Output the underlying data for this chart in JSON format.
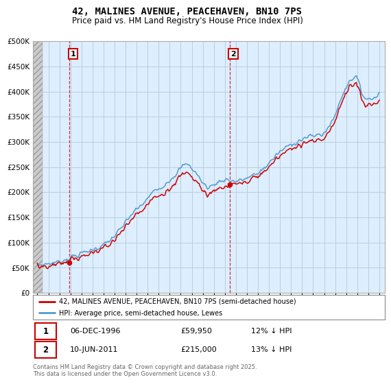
{
  "title1": "42, MALINES AVENUE, PEACEHAVEN, BN10 7PS",
  "title2": "Price paid vs. HM Land Registry's House Price Index (HPI)",
  "legend_line1": "42, MALINES AVENUE, PEACEHAVEN, BN10 7PS (semi-detached house)",
  "legend_line2": "HPI: Average price, semi-detached house, Lewes",
  "annotation1_date": "06-DEC-1996",
  "annotation1_price": "£59,950",
  "annotation1_hpi": "12% ↓ HPI",
  "annotation2_date": "10-JUN-2011",
  "annotation2_price": "£215,000",
  "annotation2_hpi": "13% ↓ HPI",
  "footer": "Contains HM Land Registry data © Crown copyright and database right 2025.\nThis data is licensed under the Open Government Licence v3.0.",
  "red_color": "#cc0000",
  "blue_color": "#5599cc",
  "bg_blue": "#ddeeff",
  "sale1_year": 1996.92,
  "sale1_price": 59950,
  "sale2_year": 2011.45,
  "sale2_price": 215000,
  "ylim_max": 500000
}
